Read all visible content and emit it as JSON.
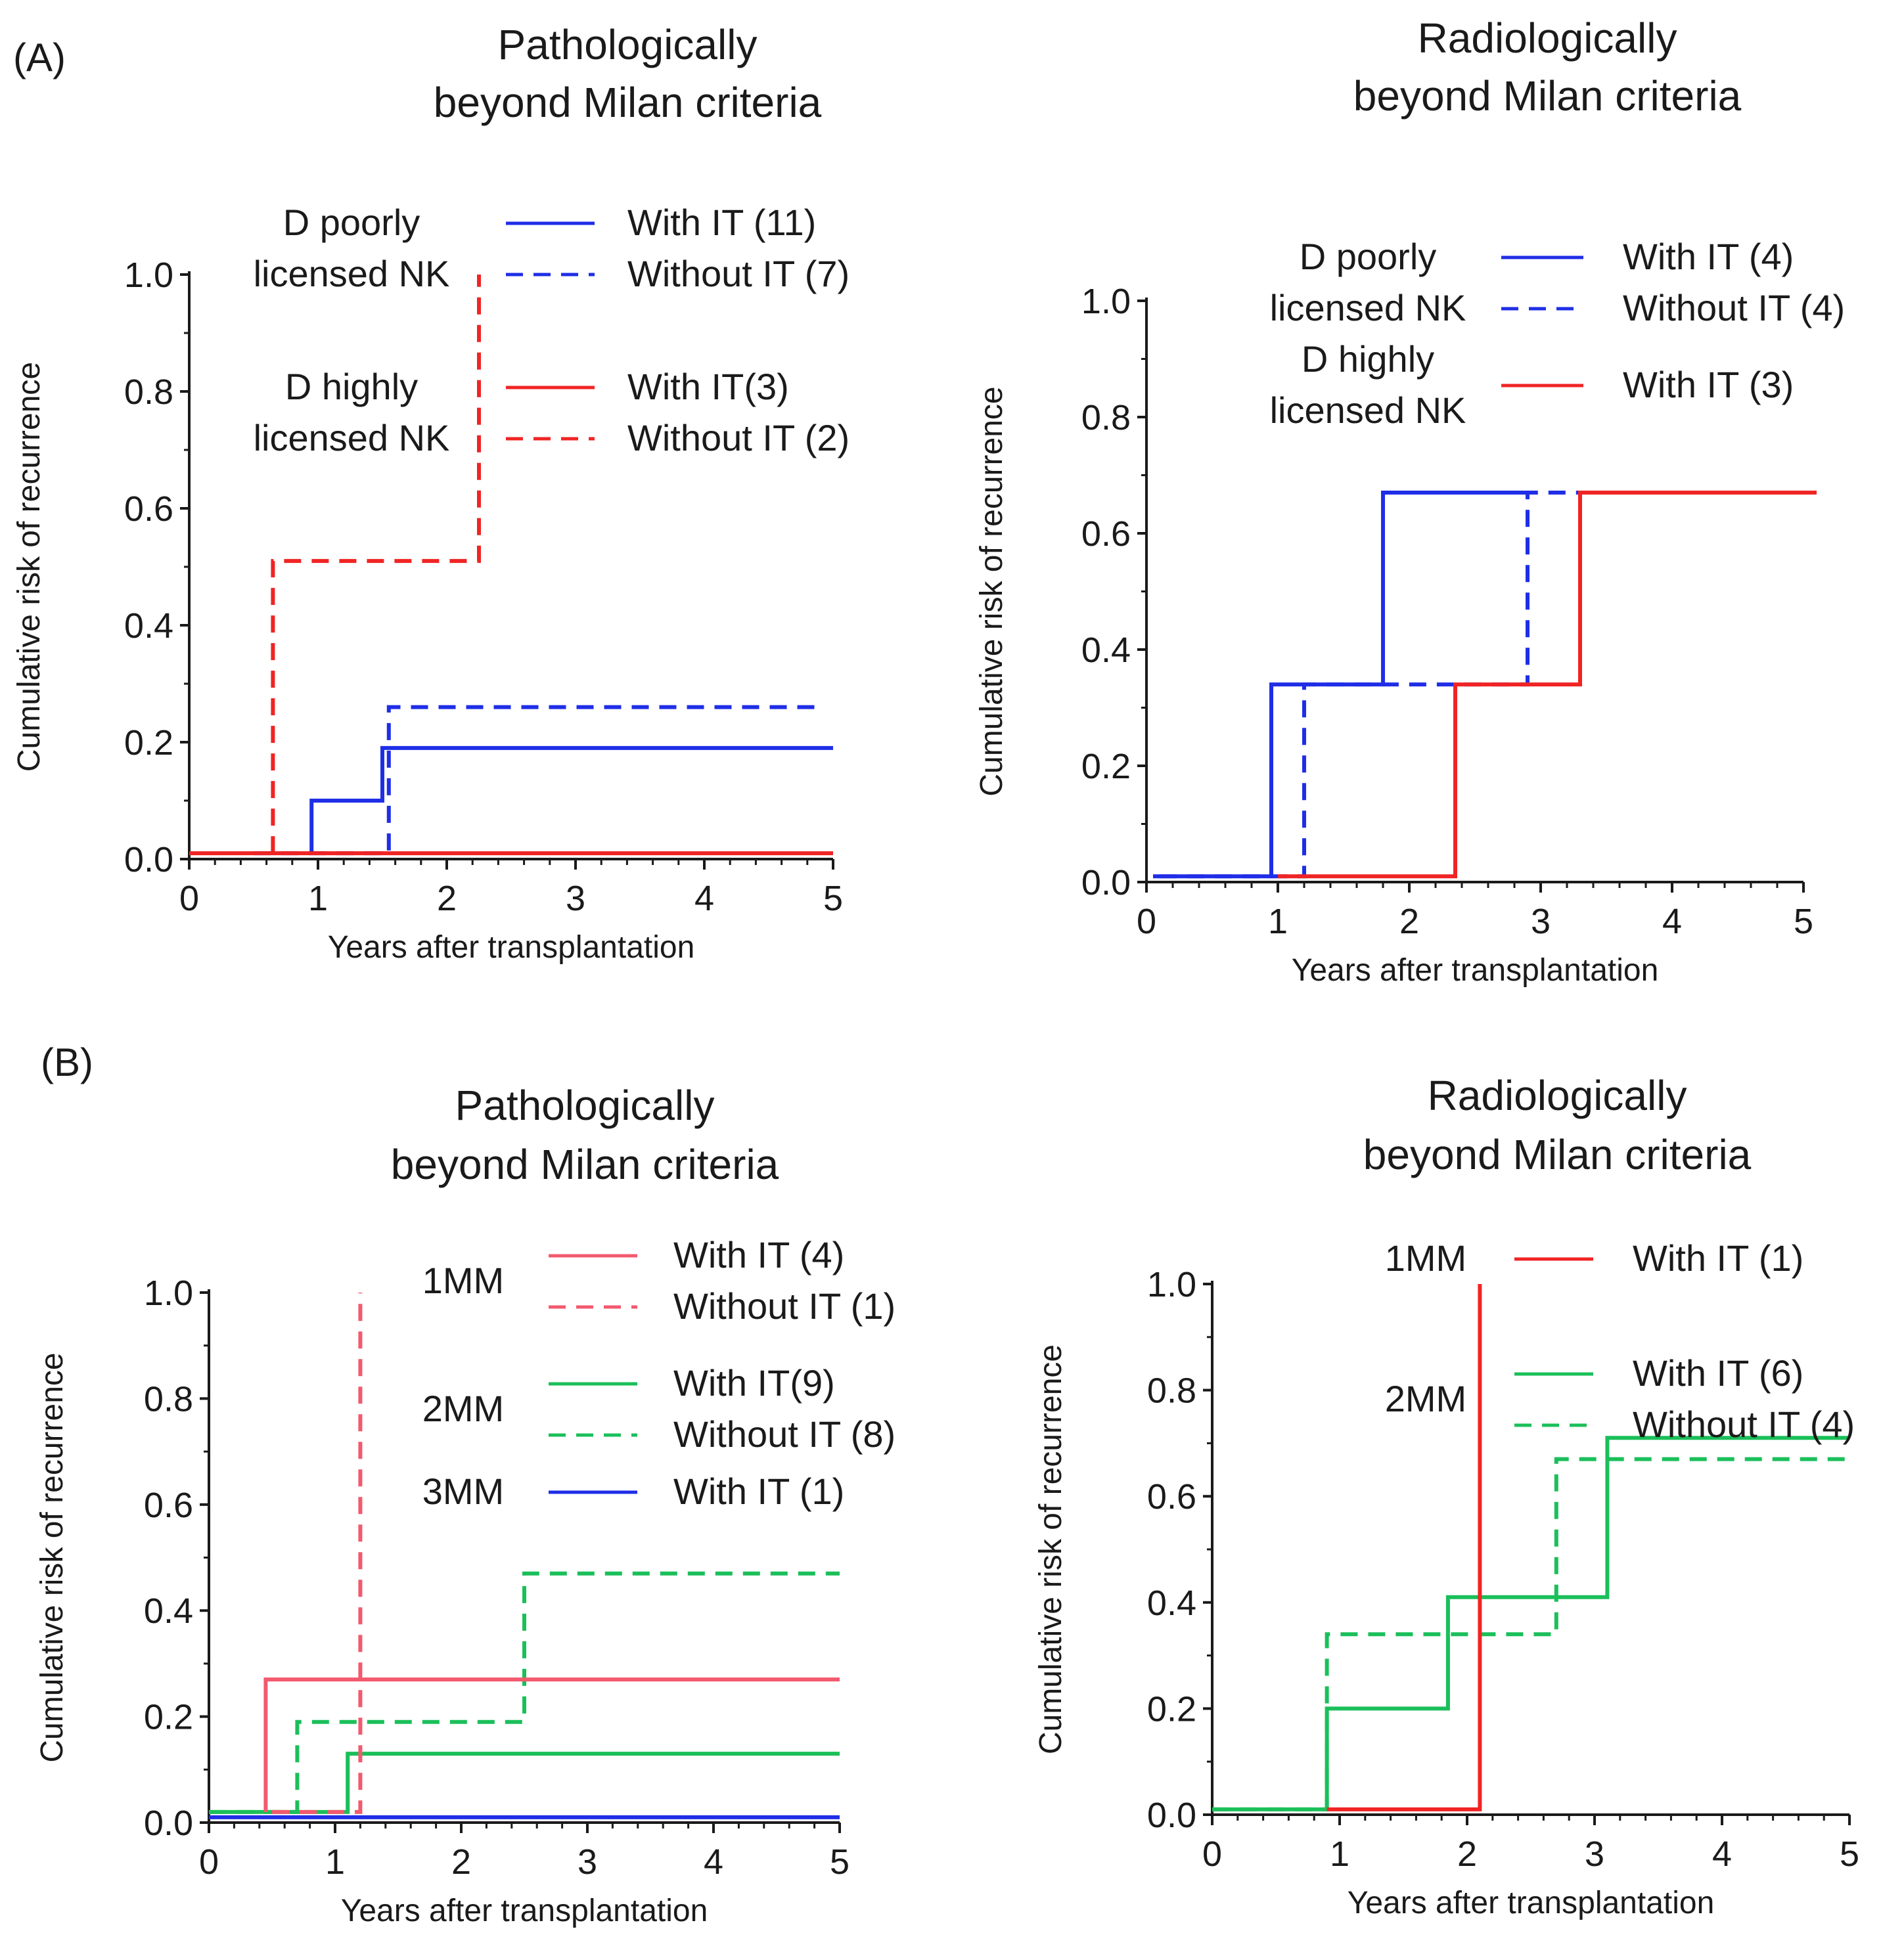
{
  "panels": {
    "A": "(A)",
    "B": "(B)"
  },
  "colors": {
    "blue": "#1f2ee6",
    "red": "#f02424",
    "green": "#1bbf5a",
    "pink": "#f25a6e",
    "axis": "#1a1a1a"
  },
  "chart_data": [
    {
      "id": "A-path",
      "type": "line",
      "step": true,
      "title": [
        "Pathologically",
        "beyond Milan criteria"
      ],
      "xlabel": "Years after transplantation",
      "ylabel": "Cumulative risk of recurrence",
      "xlim": [
        0,
        5
      ],
      "ylim": [
        0,
        1.0
      ],
      "xticks": [
        "0",
        "1",
        "2",
        "3",
        "4",
        "5"
      ],
      "yticks": [
        "0.0",
        "0.2",
        "0.4",
        "0.6",
        "0.8",
        "1.0"
      ],
      "legend_groups": [
        {
          "group": [
            "D poorly",
            "licensed NK"
          ],
          "entries": [
            {
              "label": "With IT (11)",
              "color": "blue",
              "dashed": false
            },
            {
              "label": "Without IT (7)",
              "color": "blue",
              "dashed": true
            }
          ]
        },
        {
          "group": [
            "D highly",
            "licensed NK"
          ],
          "entries": [
            {
              "label": "With IT(3)",
              "color": "red",
              "dashed": false
            },
            {
              "label": "Without IT (2)",
              "color": "red",
              "dashed": true
            }
          ]
        }
      ],
      "series": [
        {
          "name": "D poorly licensed NK, Without IT (7)",
          "color": "blue",
          "dashed": true,
          "x": [
            0.5,
            1.55,
            1.55,
            4.9
          ],
          "y": [
            0.01,
            0.01,
            0.26,
            0.26
          ]
        },
        {
          "name": "D poorly licensed NK, With IT (11)",
          "color": "blue",
          "dashed": false,
          "x": [
            0.95,
            0.95,
            1.5,
            1.5,
            5.0
          ],
          "y": [
            0.01,
            0.1,
            0.1,
            0.19,
            0.19
          ]
        },
        {
          "name": "D highly licensed NK, Without IT (2)",
          "color": "red",
          "dashed": true,
          "x": [
            0.65,
            0.65,
            2.25,
            2.25
          ],
          "y": [
            0.01,
            0.51,
            0.51,
            1.0
          ]
        },
        {
          "name": "D highly licensed NK, With IT(3)",
          "color": "red",
          "dashed": false,
          "x": [
            0.0,
            5.0
          ],
          "y": [
            0.01,
            0.01
          ]
        }
      ]
    },
    {
      "id": "A-radio",
      "type": "line",
      "step": true,
      "title": [
        "Radiologically",
        "beyond Milan criteria"
      ],
      "xlabel": "Years after transplantation",
      "ylabel": "Cumulative risk of recurrence",
      "xlim": [
        0,
        5
      ],
      "ylim": [
        0,
        1.0
      ],
      "xticks": [
        "0",
        "1",
        "2",
        "3",
        "4",
        "5"
      ],
      "yticks": [
        "0.0",
        "0.2",
        "0.4",
        "0.6",
        "0.8",
        "1.0"
      ],
      "legend_groups": [
        {
          "group": [
            "D poorly",
            "licensed NK"
          ],
          "entries": [
            {
              "label": "With IT (4)",
              "color": "blue",
              "dashed": false
            },
            {
              "label": "Without IT (4)",
              "color": "blue",
              "dashed": true
            }
          ]
        },
        {
          "group": [
            "D highly",
            "licensed NK"
          ],
          "entries": [
            {
              "label": "With IT (3)",
              "color": "red",
              "dashed": false
            }
          ]
        }
      ],
      "series": [
        {
          "name": "D poorly licensed NK, Without IT (4)",
          "color": "blue",
          "dashed": true,
          "x": [
            0.1,
            1.2,
            1.2,
            2.9,
            2.9,
            5.1
          ],
          "y": [
            0.01,
            0.01,
            0.34,
            0.34,
            0.67,
            0.67
          ]
        },
        {
          "name": "D poorly licensed NK, With IT (4)",
          "color": "blue",
          "dashed": false,
          "x": [
            0.05,
            0.95,
            0.95,
            1.8,
            1.8,
            2.9
          ],
          "y": [
            0.01,
            0.01,
            0.34,
            0.34,
            0.67,
            0.67
          ]
        },
        {
          "name": "D highly licensed NK, With IT (3)",
          "color": "red",
          "dashed": false,
          "x": [
            1.0,
            2.35,
            2.35,
            3.3,
            3.3,
            5.1
          ],
          "y": [
            0.01,
            0.01,
            0.34,
            0.34,
            0.67,
            0.67
          ]
        }
      ]
    },
    {
      "id": "B-path",
      "type": "line",
      "step": true,
      "title": [
        "Pathologically",
        "beyond Milan criteria"
      ],
      "xlabel": "Years after transplantation",
      "ylabel": "Cumulative risk of recurrence",
      "xlim": [
        0,
        5
      ],
      "ylim": [
        0,
        1.0
      ],
      "xticks": [
        "0",
        "1",
        "2",
        "3",
        "4",
        "5"
      ],
      "yticks": [
        "0.0",
        "0.2",
        "0.4",
        "0.6",
        "0.8",
        "1.0"
      ],
      "legend_groups": [
        {
          "group": [
            "1MM"
          ],
          "entries": [
            {
              "label": "With IT (4)",
              "color": "pink",
              "dashed": false
            },
            {
              "label": "Without IT (1)",
              "color": "pink",
              "dashed": true
            }
          ]
        },
        {
          "group": [
            "2MM"
          ],
          "entries": [
            {
              "label": "With IT(9)",
              "color": "green",
              "dashed": false
            },
            {
              "label": "Without IT (8)",
              "color": "green",
              "dashed": true
            }
          ]
        },
        {
          "group": [
            "3MM"
          ],
          "entries": [
            {
              "label": "With IT (1)",
              "color": "blue",
              "dashed": false
            }
          ]
        }
      ],
      "series": [
        {
          "name": "3MM, With IT (1)",
          "color": "blue",
          "dashed": false,
          "x": [
            0.0,
            5.0
          ],
          "y": [
            0.01,
            0.01
          ]
        },
        {
          "name": "2MM, Without IT (8)",
          "color": "green",
          "dashed": true,
          "x": [
            0.0,
            0.7,
            0.7,
            2.5,
            2.5,
            5.0
          ],
          "y": [
            0.02,
            0.02,
            0.19,
            0.19,
            0.47,
            0.47
          ]
        },
        {
          "name": "2MM, With IT(9)",
          "color": "green",
          "dashed": false,
          "x": [
            0.0,
            1.1,
            1.1,
            5.0
          ],
          "y": [
            0.02,
            0.02,
            0.13,
            0.13
          ]
        },
        {
          "name": "1MM, With IT (4)",
          "color": "pink",
          "dashed": false,
          "x": [
            0.45,
            0.45,
            5.0
          ],
          "y": [
            0.02,
            0.27,
            0.27
          ]
        },
        {
          "name": "1MM, Without IT (1)",
          "color": "pink",
          "dashed": true,
          "x": [
            0.5,
            1.2,
            1.2
          ],
          "y": [
            0.02,
            0.02,
            1.0
          ]
        }
      ]
    },
    {
      "id": "B-radio",
      "type": "line",
      "step": true,
      "title": [
        "Radiologically",
        "beyond Milan criteria"
      ],
      "xlabel": "Years after transplantation",
      "ylabel": "Cumulative risk of recurrence",
      "xlim": [
        0,
        5
      ],
      "ylim": [
        0,
        1.0
      ],
      "xticks": [
        "0",
        "1",
        "2",
        "3",
        "4",
        "5"
      ],
      "yticks": [
        "0.0",
        "0.2",
        "0.4",
        "0.6",
        "0.8",
        "1.0"
      ],
      "legend_groups": [
        {
          "group": [
            "1MM"
          ],
          "entries": [
            {
              "label": "With IT (1)",
              "color": "red",
              "dashed": false
            }
          ]
        },
        {
          "group": [
            "2MM"
          ],
          "entries": [
            {
              "label": "With IT (6)",
              "color": "green",
              "dashed": false
            },
            {
              "label": "Without IT (4)",
              "color": "green",
              "dashed": true
            }
          ]
        }
      ],
      "series": [
        {
          "name": "2MM, Without IT (4)",
          "color": "green",
          "dashed": true,
          "x": [
            0.0,
            0.9,
            0.9,
            2.7,
            2.7,
            5.0
          ],
          "y": [
            0.01,
            0.01,
            0.34,
            0.34,
            0.67,
            0.67
          ]
        },
        {
          "name": "2MM, With IT (6)",
          "color": "green",
          "dashed": false,
          "x": [
            0.0,
            0.9,
            0.9,
            1.85,
            1.85,
            3.1,
            3.1,
            5.0
          ],
          "y": [
            0.01,
            0.01,
            0.2,
            0.2,
            0.41,
            0.41,
            0.71,
            0.71
          ]
        },
        {
          "name": "1MM, With IT (1)",
          "color": "red",
          "dashed": false,
          "x": [
            0.9,
            2.1,
            2.1
          ],
          "y": [
            0.01,
            0.01,
            1.0
          ]
        }
      ]
    }
  ]
}
